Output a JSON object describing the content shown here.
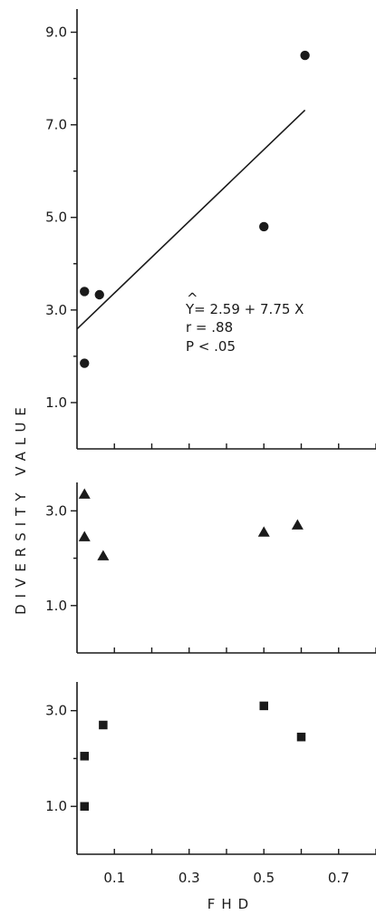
{
  "chart_data": [
    {
      "type": "scatter",
      "marker": "circle",
      "xlim": [
        0.0,
        0.8
      ],
      "ylim": [
        0.0,
        9.5
      ],
      "yticks": [
        "1.0",
        "3.0",
        "5.0",
        "7.0",
        "9.0"
      ],
      "points": [
        {
          "x": 0.02,
          "y": 1.85
        },
        {
          "x": 0.02,
          "y": 3.4
        },
        {
          "x": 0.06,
          "y": 3.33
        },
        {
          "x": 0.5,
          "y": 4.8
        },
        {
          "x": 0.61,
          "y": 8.5
        }
      ],
      "regression": {
        "intercept": 2.59,
        "slope": 7.75,
        "x_from": 0.0,
        "x_to": 0.61
      },
      "annotation": {
        "hat": "^",
        "equation": "Y= 2.59 + 7.75 X",
        "r": "r = .88",
        "p": "P < .05"
      }
    },
    {
      "type": "scatter",
      "marker": "triangle",
      "xlim": [
        0.0,
        0.8
      ],
      "ylim": [
        0.0,
        3.6
      ],
      "yticks": [
        "1.0",
        "3.0"
      ],
      "points": [
        {
          "x": 0.02,
          "y": 3.35
        },
        {
          "x": 0.02,
          "y": 2.45
        },
        {
          "x": 0.07,
          "y": 2.05
        },
        {
          "x": 0.5,
          "y": 2.55
        },
        {
          "x": 0.59,
          "y": 2.7
        }
      ]
    },
    {
      "type": "scatter",
      "marker": "square",
      "xlim": [
        0.0,
        0.8
      ],
      "ylim": [
        0.0,
        3.6
      ],
      "yticks": [
        "1.0",
        "3.0"
      ],
      "xticks": [
        "0.1",
        "0.3",
        "0.5",
        "0.7"
      ],
      "points": [
        {
          "x": 0.02,
          "y": 2.05
        },
        {
          "x": 0.02,
          "y": 1.0
        },
        {
          "x": 0.07,
          "y": 2.7
        },
        {
          "x": 0.5,
          "y": 3.1
        },
        {
          "x": 0.6,
          "y": 2.45
        }
      ]
    }
  ],
  "labels": {
    "ylabel": "DIVERSITY VALUE",
    "xlabel": "FHD"
  },
  "colors": {
    "ink": "#1a1a1a",
    "background": "#ffffff"
  }
}
